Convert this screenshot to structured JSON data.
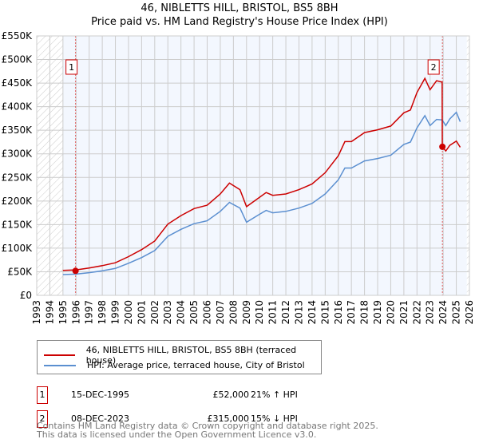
{
  "chart_data": {
    "type": "line",
    "title": "46, NIBLETTS HILL, BRISTOL, BS5 8BH",
    "subtitle": "Price paid vs. HM Land Registry's House Price Index (HPI)",
    "xlim": [
      1993,
      2026
    ],
    "ylim": [
      0,
      550000
    ],
    "x_ticks": [
      "1993",
      "1994",
      "1995",
      "1996",
      "1997",
      "1998",
      "1999",
      "2000",
      "2001",
      "2002",
      "2003",
      "2004",
      "2005",
      "2006",
      "2007",
      "2008",
      "2009",
      "2010",
      "2011",
      "2012",
      "2013",
      "2014",
      "2015",
      "2016",
      "2017",
      "2018",
      "2019",
      "2020",
      "2021",
      "2022",
      "2023",
      "2024",
      "2025",
      "2026"
    ],
    "y_ticks": [
      "£0",
      "£50K",
      "£100K",
      "£150K",
      "£200K",
      "£250K",
      "£300K",
      "£350K",
      "£400K",
      "£450K",
      "£500K",
      "£550K"
    ],
    "grid": true,
    "series": [
      {
        "name": "46, NIBLETTS HILL, BRISTOL, BS5 8BH (terraced house)",
        "color": "#cc0000",
        "x": [
          1995,
          1996,
          1997,
          1998,
          1999,
          2000,
          2001,
          2002,
          2003,
          2004,
          2005,
          2006,
          2007,
          2007.7,
          2008.5,
          2009,
          2010,
          2010.5,
          2011,
          2012,
          2013,
          2014,
          2015,
          2016,
          2016.5,
          2017,
          2018,
          2019,
          2020,
          2021,
          2021.5,
          2022,
          2022.6,
          2023,
          2023.5,
          2023.92,
          2023.93,
          2024.2,
          2024.5,
          2025,
          2025.3
        ],
        "y": [
          53000,
          54000,
          58000,
          63000,
          69000,
          82000,
          97000,
          115000,
          151000,
          169000,
          184000,
          191000,
          215000,
          238000,
          224000,
          188000,
          208000,
          218000,
          212000,
          215000,
          224000,
          236000,
          260000,
          296000,
          326000,
          326000,
          345000,
          351000,
          359000,
          387000,
          393000,
          430000,
          460000,
          436000,
          455000,
          452000,
          315000,
          306000,
          318000,
          327000,
          314000
        ]
      },
      {
        "name": "HPI: Average price, terraced house, City of Bristol",
        "color": "#5b8fd0",
        "x": [
          1995,
          1996,
          1997,
          1998,
          1999,
          2000,
          2001,
          2002,
          2003,
          2004,
          2005,
          2006,
          2007,
          2007.7,
          2008.5,
          2009,
          2010,
          2010.5,
          2011,
          2012,
          2013,
          2014,
          2015,
          2016,
          2016.5,
          2017,
          2018,
          2019,
          2020,
          2021,
          2021.5,
          2022,
          2022.6,
          2023,
          2023.5,
          2023.92,
          2024.2,
          2024.5,
          2025,
          2025.3
        ],
        "y": [
          44000,
          45000,
          48000,
          52000,
          57000,
          68000,
          80000,
          95000,
          125000,
          140000,
          152000,
          158000,
          178000,
          197000,
          185000,
          155000,
          172000,
          180000,
          175000,
          178000,
          185000,
          195000,
          215000,
          245000,
          270000,
          270000,
          285000,
          290000,
          297000,
          320000,
          325000,
          355000,
          381000,
          360000,
          373000,
          372000,
          360000,
          374000,
          388000,
          368000
        ]
      }
    ],
    "sales": [
      {
        "label": "1",
        "x": 1995.96,
        "y": 52000
      },
      {
        "label": "2",
        "x": 2023.94,
        "y": 315000
      }
    ],
    "legend_placement": "below"
  },
  "table": [
    {
      "num": "1",
      "date": "15-DEC-1995",
      "price": "£52,000",
      "hpi": "21% ↑ HPI"
    },
    {
      "num": "2",
      "date": "08-DEC-2023",
      "price": "£315,000",
      "hpi": "15% ↓ HPI"
    }
  ],
  "footer": {
    "line1": "Contains HM Land Registry data © Crown copyright and database right 2025.",
    "line2": "This data is licensed under the Open Government Licence v3.0."
  }
}
